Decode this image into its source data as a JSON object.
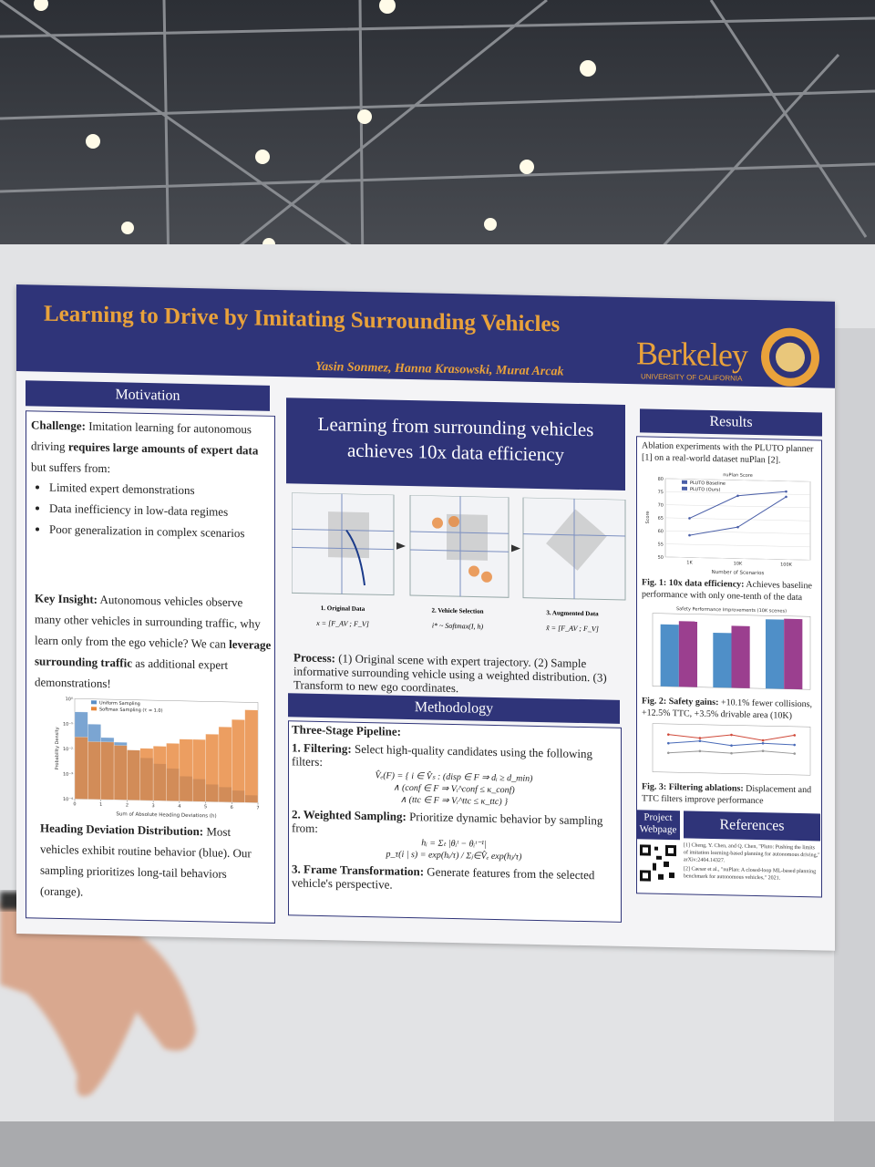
{
  "poster": {
    "title": "Learning to Drive by Imitating Surrounding Vehicles",
    "authors": "Yasin Sonmez, Hanna Krasowski, Murat Arcak",
    "logo": {
      "name": "Berkeley",
      "subtitle": "UNIVERSITY OF CALIFORNIA"
    },
    "motivation": {
      "heading": "Motivation",
      "challenge": [
        "Challenge:",
        " Imitation learning for autonomous driving ",
        "requires large amounts of expert data",
        " but suffers from:"
      ],
      "bullets": [
        "Limited expert demonstrations",
        "Data inefficiency in low-data regimes",
        "Poor generalization in complex scenarios"
      ],
      "insight": [
        "Key Insight:",
        " Autonomous vehicles observe many other vehicles in surrounding traffic, why learn only from the ego vehicle? We can ",
        "leverage surrounding traffic",
        " as additional expert demonstrations!"
      ],
      "histogram": {
        "type": "histogram",
        "xlabel": "Sum of Absolute Heading Deviations (h)",
        "ylabel": "Probability Density",
        "bins": [
          0,
          0.5,
          1,
          1.5,
          2,
          2.5,
          3,
          3.5,
          4,
          4.5,
          5,
          5.5,
          6,
          6.5,
          7
        ],
        "xlim": [
          0,
          7
        ],
        "xticks": [
          0,
          1,
          2,
          3,
          4,
          5,
          6,
          7
        ],
        "log_y": true,
        "ylim": [
          0.0001,
          1
        ],
        "yticks": [
          {
            "value": 0.0001,
            "label": "10⁻⁴"
          },
          {
            "value": 0.001,
            "label": "10⁻³"
          },
          {
            "value": 0.01,
            "label": "10⁻²"
          },
          {
            "value": 0.1,
            "label": "10⁻¹"
          },
          {
            "value": 1,
            "label": "10⁰"
          }
        ],
        "series": [
          {
            "name": "Uniform Sampling",
            "color": "#5b8fc7",
            "values": [
              0.3,
              0.1,
              0.03,
              0.02,
              0.01,
              0.005,
              0.003,
              0.002,
              0.001,
              0.0008,
              0.0005,
              0.0004,
              0.0003,
              0.0002
            ]
          },
          {
            "name": "Softmax Sampling (τ = 1.0)",
            "color": "#e8873a",
            "values": [
              0.03,
              0.02,
              0.02,
              0.015,
              0.01,
              0.012,
              0.015,
              0.02,
              0.03,
              0.03,
              0.05,
              0.1,
              0.2,
              0.5
            ]
          }
        ]
      },
      "caption": [
        "Heading Deviation Distribution:",
        " Most vehicles exhibit routine behavior (blue). Our sampling prioritizes long-tail behaviors (orange)."
      ]
    },
    "headline": "Learning from surrounding vehicles achieves 10x data efficiency",
    "pipeline": {
      "steps": [
        "1. Original Data",
        "2. Vehicle Selection",
        "3. Augmented Data"
      ],
      "formulas": [
        "x = [F_AV ; F_V]",
        "i* ~ Softmax(I, h)",
        "x̃ = [F_AV ; F_V]"
      ],
      "process": [
        "Process:",
        " (1) Original scene with expert trajectory. (2) Sample informative surrounding vehicle using a weighted distribution. (3) Transform to new ego coordinates."
      ]
    },
    "methodology": {
      "heading": "Methodology",
      "intro": "Three-Stage Pipeline:",
      "steps": [
        {
          "label": "1. Filtering:",
          "text": " Select high-quality candidates using the following filters:",
          "formula": [
            "V̂ₑ(F) = { i ∈ V̂ₛ : (disp ∈ F ⇒ dᵢ ≥ d_min)",
            "∧ (conf ∈ F ⇒ Vᵢ^conf ≤ κ_conf)",
            "∧ (ttc ∈ F ⇒ Vᵢ^ttc ≤ κ_ttc) }"
          ]
        },
        {
          "label": "2. Weighted Sampling:",
          "text": " Prioritize dynamic behavior by sampling from:",
          "formula": [
            "hᵢ = Σₜ |θᵢᵗ − θᵢᵗ⁻¹|",
            "p_τ(i | s) = exp(hᵢ/τ) / Σⱼ∈V̂ₑ exp(hⱼ/τ)"
          ]
        },
        {
          "label": "3. Frame Transformation:",
          "text": " Generate features from the selected vehicle's perspective.",
          "formula": []
        }
      ]
    },
    "results": {
      "heading": "Results",
      "intro": "Ablation experiments with the PLUTO planner [1] on a real-world dataset nuPlan [2].",
      "fig1": {
        "type": "line",
        "title": "nuPlan Score",
        "xlabel": "Number of Scenarios",
        "ylabel": "Score",
        "categories": [
          "1K",
          "10K",
          "100K"
        ],
        "ylim": [
          50,
          80
        ],
        "yticks": [
          50,
          55,
          60,
          65,
          70,
          75,
          80
        ],
        "grid": true,
        "series": [
          {
            "name": "PLUTO Baseline",
            "color": "#4a5fa8",
            "values": [
              58.5,
              62,
              74
            ]
          },
          {
            "name": "PLUTO (Ours)",
            "color": "#4a5fa8",
            "values": [
              65,
              74,
              76
            ]
          }
        ]
      },
      "cap1": [
        "Fig. 1: 10x data efficiency:",
        " Achieves baseline performance with only one-tenth of the data"
      ],
      "fig2": {
        "type": "bar",
        "title": "Safety Performance Improvements (10K scenes)",
        "categories": [
          null,
          null,
          null
        ],
        "ylim": [
          0,
          80
        ],
        "series": [
          {
            "color": "#4f8fc8",
            "values": [
              68,
              60,
              76
            ]
          },
          {
            "color": "#9b3f8f",
            "values": [
              72,
              68,
              77
            ]
          }
        ]
      },
      "cap2": [
        "Fig. 2: Safety gains:",
        " +10.1% fewer collisions, +12.5% TTC, +3.5% drivable area (10K)"
      ],
      "fig3": {
        "type": "line",
        "categories": [
          null,
          null,
          null,
          null,
          null
        ],
        "ylim": [
          0,
          100
        ],
        "grid": true,
        "series": [
          {
            "color": "#d04a3a",
            "values": [
              78,
              72,
              80,
              70,
              82
            ]
          },
          {
            "color": "#4a6bb8",
            "values": [
              60,
              66,
              58,
              64,
              62
            ]
          },
          {
            "color": "#999999",
            "values": [
              40,
              45,
              42,
              48,
              44
            ]
          }
        ]
      },
      "cap3": [
        "Fig. 3: Filtering ablations:",
        " Displacement and TTC filters improve performance"
      ]
    },
    "project_webpage": "Project Webpage",
    "references": {
      "heading": "References",
      "items": [
        "[1] Cheng, Y. Chen, and Q. Chen, \"Pluto: Pushing the limits of imitation learning-based planning for autonomous driving,\" arXiv:2404.14327.",
        "[2] Caesar et al., \"nuPlan: A closed-loop ML-based planning benchmark for autonomous vehicles,\" 2021."
      ]
    }
  }
}
